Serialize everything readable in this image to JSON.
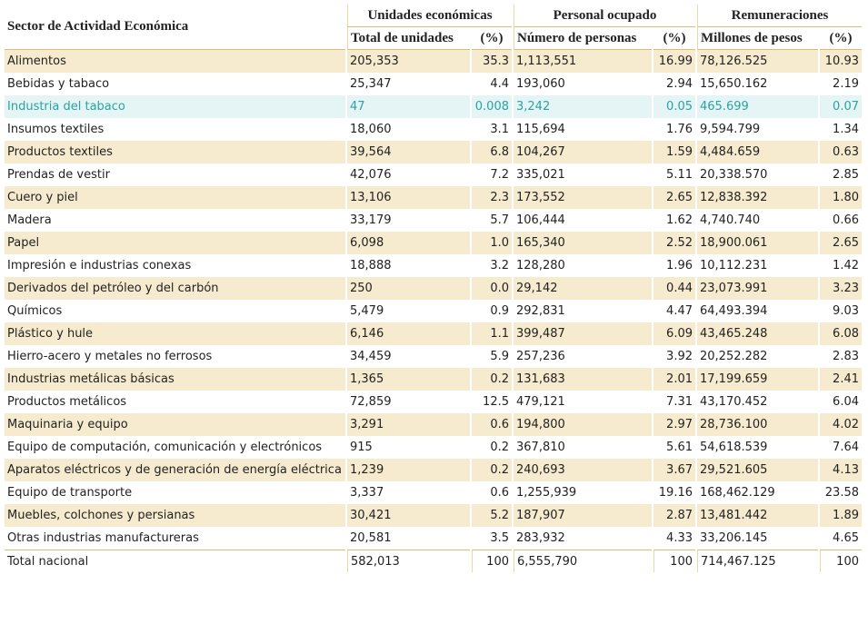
{
  "table": {
    "corner": "Sector de Actividad Económica",
    "groups": [
      "Unidades económicas",
      "Personal ocupado",
      "Remuneraciones"
    ],
    "columns": [
      "Total de unidades",
      "(%)",
      "Número de personas",
      "(%)",
      "Millones de pesos",
      "(%)"
    ],
    "highlight_row": 2,
    "rows": [
      [
        "Alimentos",
        "205,353",
        "35.3",
        "1,113,551",
        "16.99",
        "78,126.525",
        "10.93"
      ],
      [
        "Bebidas y tabaco",
        "25,347",
        "4.4",
        "193,060",
        "2.94",
        "15,650.162",
        "2.19"
      ],
      [
        "Industria del tabaco",
        "47",
        "0.008",
        "3,242",
        "0.05",
        "465.699",
        "0.07"
      ],
      [
        "Insumos textiles",
        "18,060",
        "3.1",
        "115,694",
        "1.76",
        "9,594.799",
        "1.34"
      ],
      [
        "Productos textiles",
        "39,564",
        "6.8",
        "104,267",
        "1.59",
        "4,484.659",
        "0.63"
      ],
      [
        "Prendas de vestir",
        "42,076",
        "7.2",
        "335,021",
        "5.11",
        "20,338.570",
        "2.85"
      ],
      [
        "Cuero y piel",
        "13,106",
        "2.3",
        "173,552",
        "2.65",
        "12,838.392",
        "1.80"
      ],
      [
        "Madera",
        "33,179",
        "5.7",
        "106,444",
        "1.62",
        "4,740.740",
        "0.66"
      ],
      [
        "Papel",
        "6,098",
        "1.0",
        "165,340",
        "2.52",
        "18,900.061",
        "2.65"
      ],
      [
        "Impresión e industrias conexas",
        "18,888",
        "3.2",
        "128,280",
        "1.96",
        "10,112.231",
        "1.42"
      ],
      [
        "Derivados del petróleo y del carbón",
        "250",
        "0.0",
        "29,142",
        "0.44",
        "23,073.991",
        "3.23"
      ],
      [
        "Químicos",
        "5,479",
        "0.9",
        "292,831",
        "4.47",
        "64,493.394",
        "9.03"
      ],
      [
        "Plástico y hule",
        "6,146",
        "1.1",
        "399,487",
        "6.09",
        "43,465.248",
        "6.08"
      ],
      [
        "Hierro-acero y metales no ferrosos",
        "34,459",
        "5.9",
        "257,236",
        "3.92",
        "20,252.282",
        "2.83"
      ],
      [
        "Industrias metálicas básicas",
        "1,365",
        "0.2",
        "131,683",
        "2.01",
        "17,199.659",
        "2.41"
      ],
      [
        "Productos metálicos",
        "72,859",
        "12.5",
        "479,121",
        "7.31",
        "43,170.452",
        "6.04"
      ],
      [
        "Maquinaria y equipo",
        "3,291",
        "0.6",
        "194,800",
        "2.97",
        "28,736.100",
        "4.02"
      ],
      [
        "Equipo de computación, comunicación y electrónicos",
        "915",
        "0.2",
        "367,810",
        "5.61",
        "54,618.539",
        "7.64"
      ],
      [
        "Aparatos eléctricos y de generación de energía eléctrica",
        "1,239",
        "0.2",
        "240,693",
        "3.67",
        "29,521.605",
        "4.13"
      ],
      [
        "Equipo de transporte",
        "3,337",
        "0.6",
        "1,255,939",
        "19.16",
        "168,462.129",
        "23.58"
      ],
      [
        "Muebles, colchones y persianas",
        "30,421",
        "5.2",
        "187,907",
        "2.87",
        "13,481.442",
        "1.89"
      ],
      [
        "Otras industrias manufactureras",
        "20,581",
        "3.5",
        "283,932",
        "4.33",
        "33,206.145",
        "4.65"
      ]
    ],
    "total": [
      "Total nacional",
      "582,013",
      "100",
      "6,555,790",
      "100",
      "714,467.125",
      "100"
    ]
  }
}
